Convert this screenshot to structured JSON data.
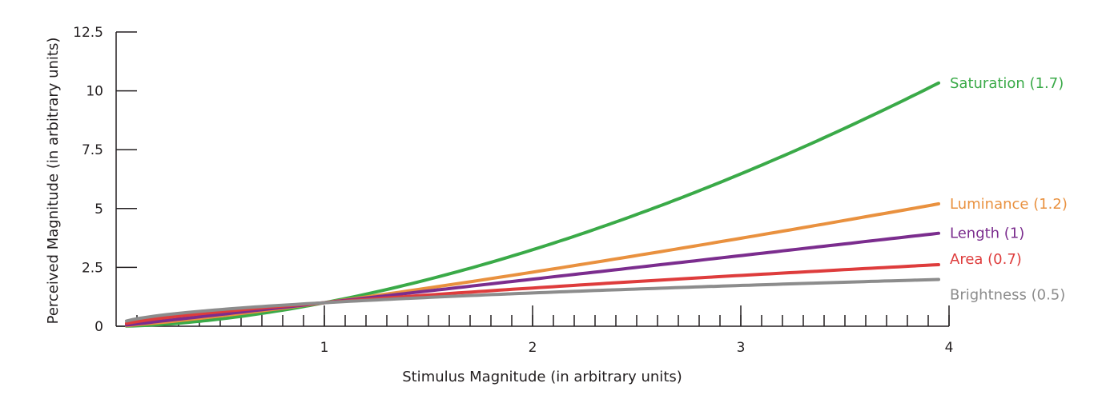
{
  "chart_data": {
    "type": "line",
    "xlabel": "Stimulus Magnitude (in arbitrary units)",
    "ylabel": "Perceived Magnitude (in arbitrary units)",
    "xlim": [
      0,
      4
    ],
    "ylim": [
      0,
      12.5
    ],
    "x_ticks": [
      "1",
      "2",
      "3",
      "4"
    ],
    "x_tick_values": [
      1,
      2,
      3,
      4
    ],
    "x_minor_step": 0.1,
    "y_ticks": [
      "0",
      "2.5",
      "5",
      "7.5",
      "10",
      "12.5"
    ],
    "y_tick_values": [
      0,
      2.5,
      5,
      7.5,
      10,
      12.5
    ],
    "grid": false,
    "legend": "direct labels at line ends (right)",
    "series": [
      {
        "name": "Saturation (1.7)",
        "exponent": 1.7,
        "color": "#3aaa48",
        "x": [
          0.05,
          0.5,
          1,
          1.5,
          2,
          2.5,
          3,
          3.5,
          3.95
        ],
        "values": [
          0.01,
          0.31,
          1.0,
          1.99,
          3.25,
          4.75,
          6.47,
          8.43,
          10.33
        ]
      },
      {
        "name": "Luminance (1.2)",
        "exponent": 1.2,
        "color": "#e9913f",
        "x": [
          0.05,
          0.5,
          1,
          1.5,
          2,
          2.5,
          3,
          3.5,
          3.95
        ],
        "values": [
          0.03,
          0.44,
          1.0,
          1.63,
          2.3,
          3.0,
          3.74,
          4.5,
          5.2
        ]
      },
      {
        "name": "Length (1)",
        "exponent": 1,
        "color": "#7b2d8e",
        "x": [
          0.05,
          0.5,
          1,
          1.5,
          2,
          2.5,
          3,
          3.5,
          3.95
        ],
        "values": [
          0.05,
          0.5,
          1.0,
          1.5,
          2.0,
          2.5,
          3.0,
          3.5,
          3.95
        ]
      },
      {
        "name": "Area (0.7)",
        "exponent": 0.7,
        "color": "#de3c3c",
        "x": [
          0.05,
          0.5,
          1,
          1.5,
          2,
          2.5,
          3,
          3.5,
          3.95
        ],
        "values": [
          0.12,
          0.62,
          1.0,
          1.33,
          1.62,
          1.9,
          2.16,
          2.4,
          2.62
        ]
      },
      {
        "name": "Brightness (0.5)",
        "exponent": 0.5,
        "color": "#8c8c8c",
        "x": [
          0.05,
          0.5,
          1,
          1.5,
          2,
          2.5,
          3,
          3.5,
          3.95
        ],
        "values": [
          0.22,
          0.71,
          1.0,
          1.22,
          1.41,
          1.58,
          1.73,
          1.87,
          1.99
        ]
      }
    ]
  }
}
